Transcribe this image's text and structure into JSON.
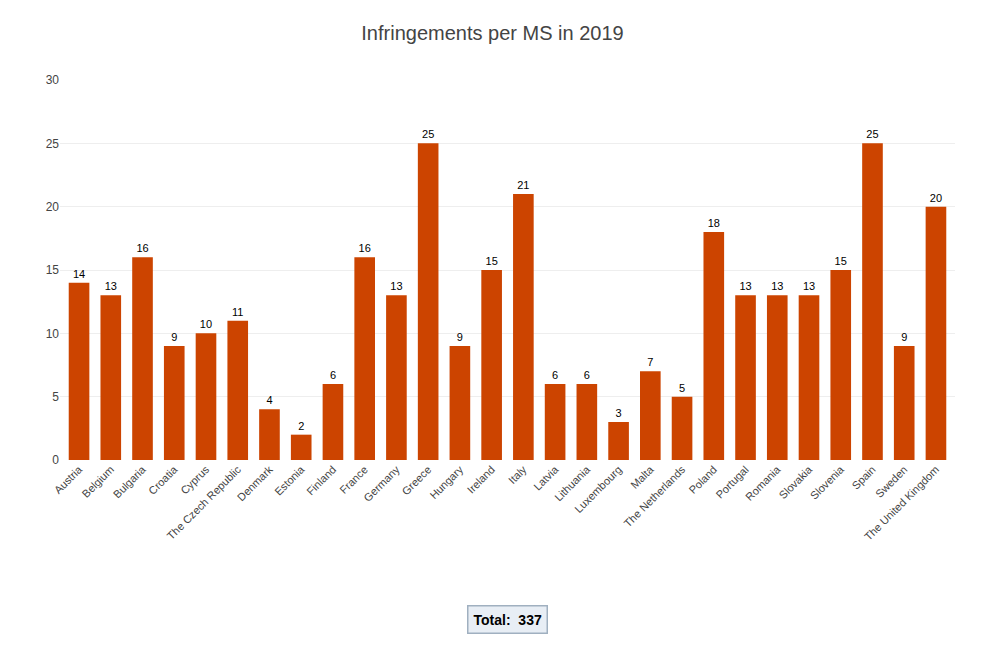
{
  "chart_data": {
    "type": "bar",
    "title": "Infringements per MS in 2019",
    "categories": [
      "Austria",
      "Belgium",
      "Bulgaria",
      "Croatia",
      "Cyprus",
      "The Czech Republic",
      "Denmark",
      "Estonia",
      "Finland",
      "France",
      "Germany",
      "Greece",
      "Hungary",
      "Ireland",
      "Italy",
      "Latvia",
      "Lithuania",
      "Luxembourg",
      "Malta",
      "The Netherlands",
      "Poland",
      "Portugal",
      "Romania",
      "Slovakia",
      "Slovenia",
      "Spain",
      "Sweden",
      "The United Kingdom"
    ],
    "values": [
      14,
      13,
      16,
      9,
      10,
      11,
      4,
      2,
      6,
      16,
      13,
      25,
      9,
      15,
      21,
      6,
      6,
      3,
      7,
      5,
      18,
      13,
      13,
      13,
      15,
      25,
      9,
      20
    ],
    "color": "#CC4400",
    "ylim": [
      0,
      30
    ],
    "yticks": [
      0,
      5,
      10,
      15,
      20,
      25,
      30
    ],
    "grid": true,
    "data_labels": true,
    "annotations": [
      "Total:  337"
    ]
  }
}
